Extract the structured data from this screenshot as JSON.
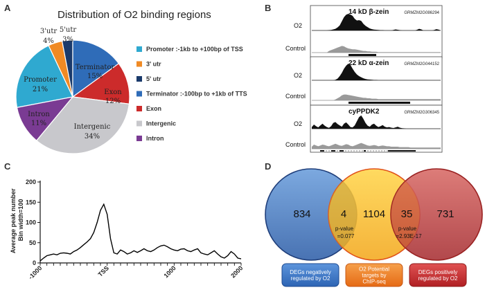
{
  "panels": {
    "a": "A",
    "b": "B",
    "c": "C",
    "d": "D"
  },
  "chart_data": [
    {
      "type": "pie",
      "title": "Distribution of O2 binding regions",
      "slices": [
        {
          "key": "promoter",
          "label": "Promoter",
          "pct_text": "21%",
          "value": 21,
          "color": "#2fa9d0"
        },
        {
          "key": "utr3",
          "label": "3'utr",
          "pct_text": "4%",
          "value": 4,
          "color": "#f08a24"
        },
        {
          "key": "utr5",
          "label": "5'utr",
          "pct_text": "3%",
          "value": 3,
          "color": "#1a3a6b"
        },
        {
          "key": "terminator",
          "label": "Terminator",
          "pct_text": "15%",
          "value": 15,
          "color": "#2f6cb8"
        },
        {
          "key": "exon",
          "label": "Exon",
          "pct_text": "12%",
          "value": 12,
          "color": "#cc2b2b"
        },
        {
          "key": "intergenic",
          "label": "Intergenic",
          "pct_text": "34%",
          "value": 34,
          "color": "#c8c8cc"
        },
        {
          "key": "intron",
          "label": "Intron",
          "pct_text": "11%",
          "value": 11,
          "color": "#7a3b93"
        }
      ],
      "legend": [
        {
          "text": "Promoter :-1kb to +100bp of TSS",
          "color": "#2fa9d0"
        },
        {
          "text": "3' utr",
          "color": "#f08a24"
        },
        {
          "text": "5' utr",
          "color": "#1a3a6b"
        },
        {
          "text": "Terminator :-100bp to +1kb of TTS",
          "color": "#2f6cb8"
        },
        {
          "text": "Exon",
          "color": "#cc2b2b"
        },
        {
          "text": "Intergenic",
          "color": "#c8c8cc"
        },
        {
          "text": "Intron",
          "color": "#7a3b93"
        }
      ]
    },
    {
      "type": "area",
      "tracks": [
        {
          "title": "14 kD β-zein",
          "gene_id": "GRMZM2G086294",
          "o2_label": "O2",
          "control_label": "Control",
          "o2": [
            0,
            0,
            0,
            0,
            0,
            0,
            0,
            0,
            2,
            3,
            6,
            10,
            18,
            30,
            55,
            80,
            95,
            100,
            96,
            88,
            70,
            60,
            62,
            58,
            40,
            28,
            20,
            12,
            8,
            5,
            4,
            3,
            2,
            2,
            0,
            0,
            0,
            0,
            3,
            6,
            4,
            2,
            0,
            0,
            0,
            0,
            0,
            0,
            0,
            4,
            10,
            6,
            0,
            0,
            0,
            0,
            0,
            3,
            8,
            5,
            0
          ],
          "control": [
            0,
            0,
            0,
            0,
            0,
            0,
            0,
            0,
            4,
            6,
            8,
            10,
            12,
            14,
            16,
            15,
            12,
            10,
            9,
            8,
            8,
            7,
            6,
            5,
            4,
            4,
            3,
            3,
            2,
            2,
            2,
            1,
            1,
            1,
            1,
            1,
            1,
            1,
            1,
            1,
            1,
            1,
            1,
            1,
            1,
            1,
            1,
            1,
            1,
            1,
            1,
            1,
            1,
            1,
            1,
            1,
            1,
            1,
            1,
            1,
            1
          ]
        },
        {
          "title": "22 kD α-zein",
          "gene_id": "GRMZM2G044152",
          "o2_label": "O2",
          "control_label": "Control",
          "o2": [
            0,
            0,
            0,
            0,
            0,
            0,
            0,
            0,
            0,
            0,
            0,
            3,
            10,
            25,
            45,
            70,
            88,
            100,
            92,
            70,
            50,
            35,
            25,
            18,
            12,
            8,
            5,
            4,
            3,
            2,
            2,
            0,
            0,
            0,
            0,
            0,
            0,
            0,
            0,
            0,
            0,
            0,
            0,
            0,
            0,
            0,
            0,
            0,
            0,
            0,
            0,
            0,
            0,
            0,
            0,
            0,
            0,
            0,
            0,
            0,
            0
          ],
          "control": [
            0,
            0,
            0,
            0,
            0,
            0,
            0,
            0,
            0,
            0,
            0,
            2,
            5,
            8,
            12,
            14,
            14,
            13,
            12,
            11,
            10,
            9,
            8,
            7,
            6,
            6,
            5,
            5,
            4,
            4,
            4,
            3,
            3,
            3,
            3,
            3,
            3,
            3,
            3,
            3,
            3,
            3,
            3,
            3,
            3,
            3,
            3,
            3,
            3,
            3,
            3,
            3,
            3,
            3,
            3,
            3,
            3,
            3,
            3,
            3,
            3
          ]
        },
        {
          "title": "cyPPDK2",
          "gene_id": "GRMZM2G306345",
          "o2_label": "O2",
          "control_label": "Control",
          "o2": [
            10,
            25,
            15,
            8,
            20,
            30,
            18,
            10,
            5,
            15,
            35,
            40,
            28,
            20,
            12,
            30,
            38,
            25,
            10,
            8,
            20,
            45,
            70,
            80,
            60,
            35,
            18,
            12,
            25,
            30,
            18,
            10,
            15,
            22,
            12,
            8,
            10,
            6,
            4,
            8,
            12,
            6,
            3,
            2,
            0,
            0,
            0,
            0,
            0,
            0,
            0,
            0,
            0,
            0,
            0,
            0,
            0,
            0,
            0,
            0,
            0
          ],
          "control": [
            5,
            10,
            8,
            6,
            8,
            10,
            9,
            7,
            6,
            8,
            10,
            12,
            10,
            8,
            7,
            9,
            11,
            10,
            7,
            6,
            8,
            10,
            12,
            14,
            12,
            10,
            8,
            7,
            8,
            9,
            8,
            6,
            7,
            8,
            7,
            6,
            6,
            5,
            5,
            5,
            5,
            4,
            4,
            4,
            4,
            4,
            3,
            3,
            3,
            3,
            3,
            3,
            3,
            3,
            3,
            3,
            3,
            3,
            3,
            3,
            3
          ]
        }
      ]
    },
    {
      "type": "line",
      "ylabel": "Average peak number\nBin width=100",
      "ylim": [
        0,
        200
      ],
      "yticks": [
        0,
        50,
        100,
        150,
        200
      ],
      "xlim": [
        -1000,
        2000
      ],
      "xticks": [
        {
          "value": -1000,
          "label": "-1000"
        },
        {
          "value": 0,
          "label": "TSS"
        },
        {
          "value": 1000,
          "label": "1000"
        },
        {
          "value": 2000,
          "label": "2000"
        }
      ],
      "x": [
        -1000,
        -950,
        -900,
        -850,
        -800,
        -750,
        -700,
        -650,
        -600,
        -550,
        -500,
        -450,
        -400,
        -350,
        -300,
        -250,
        -200,
        -150,
        -100,
        -50,
        0,
        50,
        100,
        150,
        200,
        250,
        300,
        350,
        400,
        450,
        500,
        550,
        600,
        650,
        700,
        750,
        800,
        850,
        900,
        950,
        1000,
        1050,
        1100,
        1150,
        1200,
        1250,
        1300,
        1350,
        1400,
        1450,
        1500,
        1550,
        1600,
        1650,
        1700,
        1750,
        1800,
        1850,
        1900,
        1950,
        2000
      ],
      "y": [
        5,
        12,
        18,
        20,
        22,
        20,
        24,
        25,
        24,
        22,
        28,
        32,
        38,
        45,
        52,
        60,
        75,
        100,
        130,
        145,
        120,
        60,
        25,
        22,
        32,
        28,
        22,
        25,
        30,
        26,
        30,
        35,
        30,
        28,
        32,
        38,
        42,
        44,
        40,
        35,
        32,
        30,
        34,
        35,
        30,
        28,
        32,
        35,
        25,
        22,
        20,
        25,
        30,
        22,
        15,
        12,
        18,
        28,
        22,
        12,
        10
      ],
      "color": "#000000"
    },
    {
      "type": "venn",
      "sets": [
        {
          "key": "neg",
          "label": "DEGs negatively regulated by O2",
          "only": "834",
          "circle_color": "#3f74c4",
          "box_color": "#2f6fbf"
        },
        {
          "key": "chip",
          "label": "O2 Potential targets by ChIP-seq",
          "only": "1104",
          "circle_color": "#f5b829",
          "box_color": "#ef7a1f"
        },
        {
          "key": "pos",
          "label": "DEGs positively regulated by O2",
          "only": "731",
          "circle_color": "#b9393a",
          "box_color": "#c52a2a"
        }
      ],
      "overlaps": [
        {
          "sets": [
            "neg",
            "chip"
          ],
          "count": "4",
          "p_label": "p-value",
          "p_value": "=0.077"
        },
        {
          "sets": [
            "chip",
            "pos"
          ],
          "count": "35",
          "p_label": "p-value",
          "p_value": "=2.93E-17"
        }
      ]
    }
  ]
}
